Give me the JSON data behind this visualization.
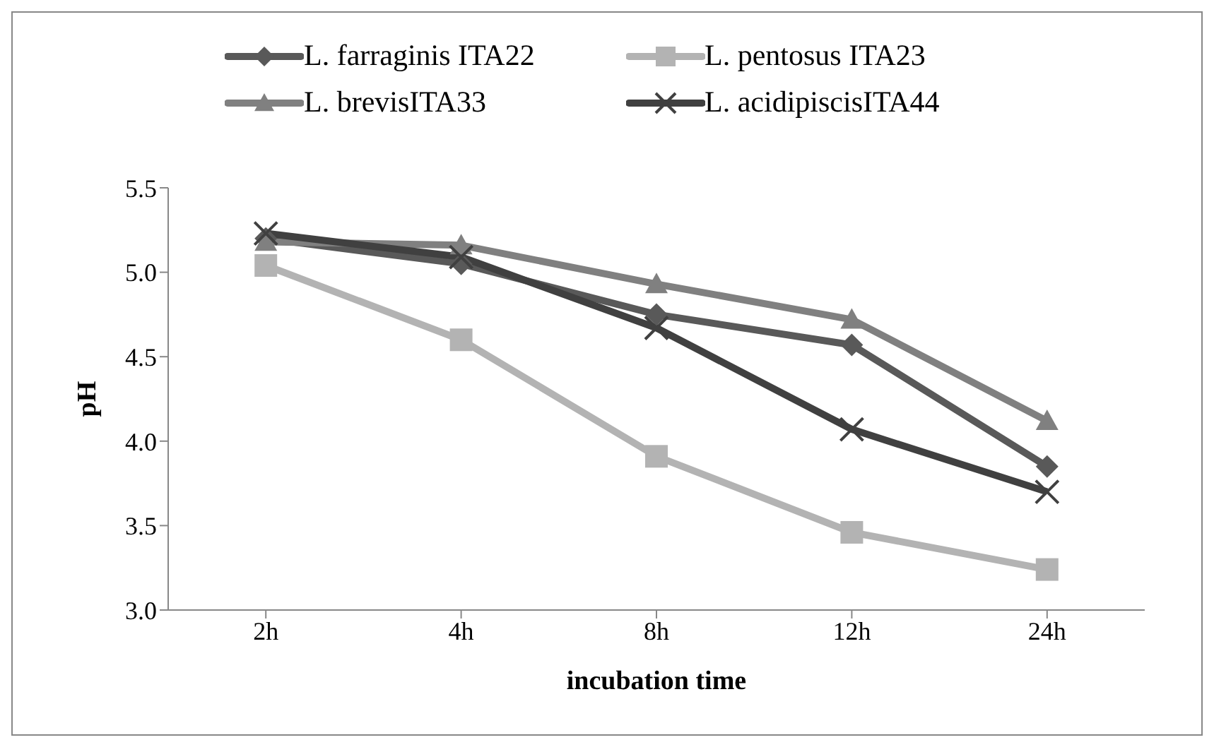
{
  "chart_data": {
    "type": "line",
    "xlabel": "incubation time",
    "ylabel": "pH",
    "categories": [
      "2h",
      "4h",
      "8h",
      "12h",
      "24h"
    ],
    "series": [
      {
        "name": "L. farraginis ITA22",
        "color": "#595959",
        "marker": "diamond",
        "values": [
          5.2,
          5.05,
          4.75,
          4.57,
          3.85
        ]
      },
      {
        "name": "L. pentosus ITA23",
        "color": "#b3b3b3",
        "marker": "square",
        "values": [
          5.04,
          4.6,
          3.91,
          3.46,
          3.24
        ]
      },
      {
        "name": "L. brevisITA33",
        "color": "#808080",
        "marker": "triangle",
        "values": [
          5.18,
          5.16,
          4.93,
          4.72,
          4.12
        ]
      },
      {
        "name": "L. acidipiscisITA44",
        "color": "#404040",
        "marker": "cross",
        "values": [
          5.23,
          5.09,
          4.67,
          4.07,
          3.7
        ]
      }
    ],
    "ylim": [
      3.0,
      5.5
    ],
    "yticks": [
      {
        "value": 3,
        "label": "3.0"
      },
      {
        "value": 3.5,
        "label": "3.5"
      },
      {
        "value": 4,
        "label": "4.0"
      },
      {
        "value": 4.5,
        "label": "4.5"
      },
      {
        "value": 5,
        "label": "5.0"
      },
      {
        "value": 5.5,
        "label": "5.5"
      }
    ],
    "grid": false,
    "legend": "top",
    "line_style": "solid"
  }
}
